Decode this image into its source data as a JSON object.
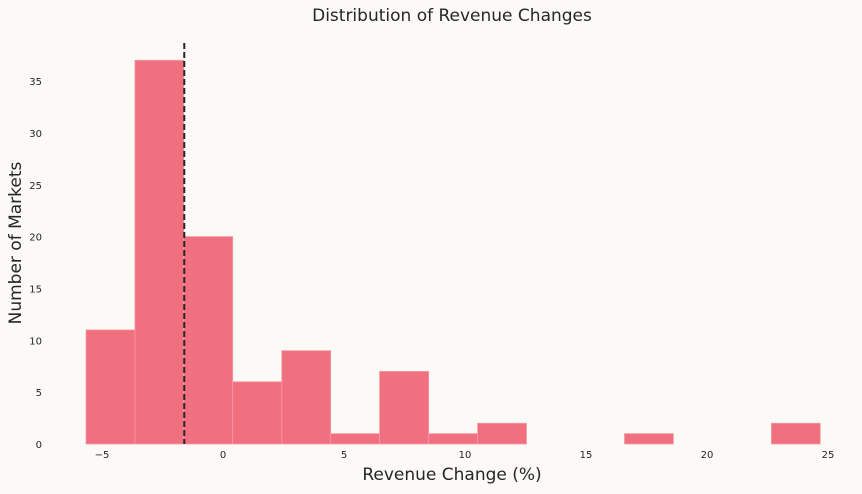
{
  "chart_data": {
    "type": "bar",
    "subtype": "histogram",
    "title": "Distribution of Revenue Changes",
    "xlabel": "Revenue Change (%)",
    "ylabel": "Number of Markets",
    "bin_edges": [
      -5.66,
      -3.64,
      -1.62,
      0.4,
      2.43,
      4.45,
      6.47,
      8.5,
      10.52,
      12.54,
      14.57,
      16.59,
      18.61,
      20.64,
      22.66,
      24.68
    ],
    "values": [
      11,
      37,
      20,
      6,
      9,
      1,
      7,
      1,
      2,
      0,
      0,
      1,
      0,
      0,
      2
    ],
    "xlim": [
      -6.3,
      25.5
    ],
    "ylim": [
      0,
      38.8
    ],
    "xticks": [
      -5,
      0,
      5,
      10,
      15,
      20,
      25
    ],
    "xtick_labels": [
      "−5",
      "0",
      "5",
      "10",
      "15",
      "20",
      "25"
    ],
    "yticks": [
      0,
      5,
      10,
      15,
      20,
      25,
      30,
      35
    ],
    "ytick_labels": [
      "0",
      "5",
      "10",
      "15",
      "20",
      "25",
      "30",
      "35"
    ],
    "reference_line": {
      "x": -1.6,
      "style": "dashed",
      "color": "#262626"
    },
    "bar_color": "#f07080",
    "grid": false
  }
}
